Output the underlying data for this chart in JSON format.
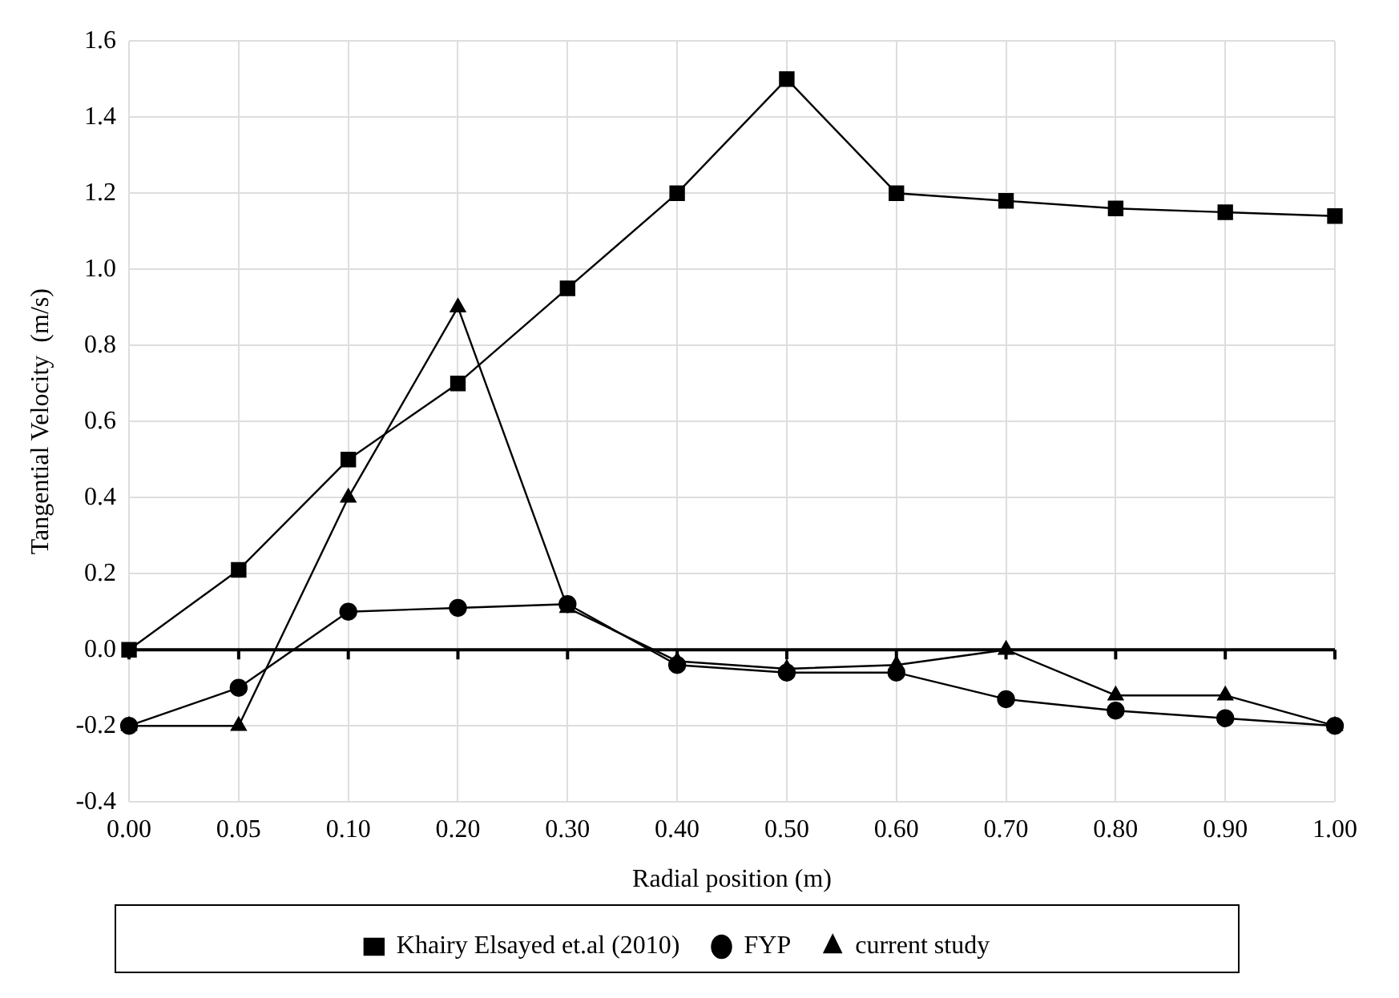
{
  "chart_data": {
    "type": "line",
    "xlabel": "Radial position (m)",
    "ylabel": "Tangential Velocity  (m/s)",
    "categories": [
      "0.00",
      "0.05",
      "0.10",
      "0.20",
      "0.30",
      "0.40",
      "0.50",
      "0.60",
      "0.70",
      "0.80",
      "0.90",
      "1.00"
    ],
    "series": [
      {
        "name": "Khairy Elsayed et.al (2010)",
        "color": "#000000",
        "marker": "square",
        "values": [
          0,
          0.21,
          0.5,
          0.7,
          0.95,
          1.2,
          1.5,
          1.2,
          1.18,
          1.16,
          1.15,
          1.14
        ]
      },
      {
        "name": "FYP",
        "color": "#000000",
        "marker": "circle",
        "values": [
          -0.2,
          -0.1,
          0.1,
          0.11,
          0.12,
          -0.04,
          -0.06,
          -0.06,
          -0.13,
          -0.16,
          -0.18,
          -0.2
        ]
      },
      {
        "name": "current study",
        "color": "#000000",
        "marker": "triangle",
        "values": [
          -0.2,
          -0.2,
          0.4,
          0.9,
          0.11,
          -0.03,
          -0.05,
          -0.04,
          0,
          -0.12,
          -0.12,
          -0.2
        ]
      }
    ],
    "ylim": [
      -0.4,
      1.6
    ],
    "yticks": [
      {
        "value": -0.4,
        "label": "-0.4"
      },
      {
        "value": -0.2,
        "label": "-0.2"
      },
      {
        "value": 0,
        "label": "0.0"
      },
      {
        "value": 0.2,
        "label": "0.2"
      },
      {
        "value": 0.4,
        "label": "0.4"
      },
      {
        "value": 0.6,
        "label": "0.6"
      },
      {
        "value": 0.8,
        "label": "0.8"
      },
      {
        "value": 1,
        "label": "1.0"
      },
      {
        "value": 1.2,
        "label": "1.2"
      },
      {
        "value": 1.4,
        "label": "1.4"
      },
      {
        "value": 1.6,
        "label": "1.6"
      }
    ],
    "ref_lines": [
      {
        "axis": "y",
        "value": 0,
        "color": "#000000"
      }
    ],
    "grid": true,
    "legend": "bottom",
    "line_style": "solid"
  }
}
